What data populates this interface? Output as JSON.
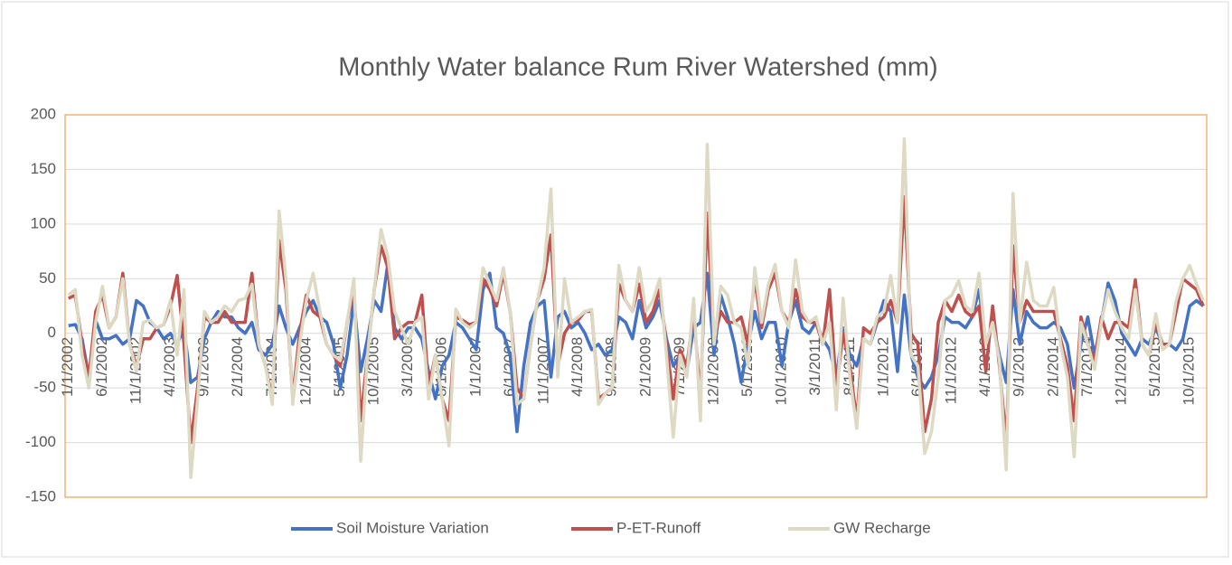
{
  "chart_data": {
    "type": "line",
    "title": "Monthly Water balance Rum River Watershed (mm)",
    "categories": [
      "1/1/2002",
      null,
      null,
      null,
      null,
      "6/1/2002",
      null,
      null,
      null,
      null,
      "11/1/2002",
      null,
      null,
      null,
      null,
      "4/1/2003",
      null,
      null,
      null,
      null,
      "9/1/2003",
      null,
      null,
      null,
      null,
      "2/1/2004",
      null,
      null,
      null,
      null,
      "7/1/2004",
      null,
      null,
      null,
      null,
      "12/1/2004",
      null,
      null,
      null,
      null,
      "5/1/2005",
      null,
      null,
      null,
      null,
      "10/1/2005",
      null,
      null,
      null,
      null,
      "3/1/2006",
      null,
      null,
      null,
      null,
      "8/1/2006",
      null,
      null,
      null,
      null,
      "1/1/2007",
      null,
      null,
      null,
      null,
      "6/1/2007",
      null,
      null,
      null,
      null,
      "11/1/2007",
      null,
      null,
      null,
      null,
      "4/1/2008",
      null,
      null,
      null,
      null,
      "9/1/2008",
      null,
      null,
      null,
      null,
      "2/1/2009",
      null,
      null,
      null,
      null,
      "7/1/2009",
      null,
      null,
      null,
      null,
      "12/1/2009",
      null,
      null,
      null,
      null,
      "5/1/2010",
      null,
      null,
      null,
      null,
      "10/1/2010",
      null,
      null,
      null,
      null,
      "3/1/2011",
      null,
      null,
      null,
      null,
      "8/1/2011",
      null,
      null,
      null,
      null,
      "1/1/2012",
      null,
      null,
      null,
      null,
      "6/1/2012",
      null,
      null,
      null,
      null,
      "11/1/2012",
      null,
      null,
      null,
      null,
      "4/1/2013",
      null,
      null,
      null,
      null,
      "9/1/2013",
      null,
      null,
      null,
      null,
      "2/1/2014",
      null,
      null,
      null,
      null,
      "7/1/2014",
      null,
      null,
      null,
      null,
      "12/1/2014",
      null,
      null,
      null,
      null,
      "5/1/2015",
      null,
      null,
      null,
      null,
      "10/1/2015",
      null,
      null
    ],
    "series": [
      {
        "name": "Soil Moisture Variation",
        "color": "#4472c4",
        "values": [
          7,
          8,
          -5,
          -40,
          12,
          -5,
          -5,
          -2,
          -10,
          -5,
          30,
          25,
          10,
          5,
          -5,
          0,
          -10,
          5,
          -45,
          -40,
          -5,
          10,
          20,
          15,
          15,
          5,
          0,
          10,
          -15,
          -20,
          -10,
          25,
          5,
          -10,
          5,
          20,
          30,
          15,
          10,
          -10,
          -50,
          -20,
          30,
          -35,
          -5,
          30,
          20,
          64,
          5,
          -5,
          5,
          5,
          -5,
          -35,
          -60,
          -30,
          -20,
          10,
          5,
          -5,
          -15,
          40,
          55,
          5,
          0,
          -20,
          -90,
          -30,
          10,
          25,
          30,
          -40,
          15,
          20,
          5,
          10,
          0,
          -15,
          -10,
          -20,
          -15,
          15,
          10,
          -5,
          30,
          5,
          15,
          30,
          -5,
          -30,
          -20,
          -35,
          5,
          10,
          55,
          -20,
          35,
          15,
          -10,
          -45,
          -10,
          20,
          -5,
          10,
          10,
          -30,
          10,
          30,
          5,
          0,
          10,
          -5,
          -15,
          -40,
          5,
          -20,
          -30,
          -5,
          -10,
          10,
          30,
          20,
          -35,
          35,
          -20,
          -40,
          -50,
          -40,
          -20,
          15,
          10,
          10,
          5,
          15,
          40,
          -10,
          10,
          -20,
          -45,
          40,
          -10,
          20,
          10,
          5,
          5,
          10,
          5,
          -10,
          -50,
          -10,
          15,
          -20,
          10,
          46,
          30,
          0,
          -10,
          -20,
          -5,
          -10,
          5,
          -10,
          -10,
          -15,
          -5,
          25,
          30,
          25
        ]
      },
      {
        "name": "P-ET-Runoff",
        "color": "#c0504d",
        "values": [
          32,
          35,
          -10,
          -40,
          20,
          35,
          5,
          15,
          55,
          -10,
          -30,
          -5,
          -5,
          5,
          8,
          25,
          53,
          -10,
          -100,
          -50,
          15,
          10,
          10,
          20,
          10,
          10,
          10,
          55,
          -10,
          -30,
          -60,
          85,
          40,
          -60,
          0,
          35,
          20,
          15,
          -10,
          -20,
          -30,
          10,
          40,
          -80,
          -20,
          40,
          80,
          60,
          -5,
          5,
          10,
          10,
          35,
          -50,
          -20,
          -60,
          -80,
          15,
          12,
          8,
          10,
          50,
          40,
          25,
          55,
          20,
          -50,
          -60,
          -10,
          30,
          50,
          90,
          -30,
          0,
          10,
          12,
          20,
          20,
          -60,
          -55,
          -50,
          45,
          30,
          20,
          45,
          10,
          20,
          40,
          -10,
          -60,
          -15,
          -30,
          20,
          -60,
          110,
          -5,
          20,
          10,
          10,
          15,
          -10,
          50,
          5,
          40,
          55,
          20,
          10,
          40,
          15,
          10,
          10,
          -10,
          40,
          -50,
          0,
          -30,
          -80,
          5,
          0,
          10,
          15,
          30,
          10,
          125,
          0,
          -10,
          -90,
          -60,
          10,
          30,
          20,
          35,
          20,
          15,
          25,
          -35,
          25,
          -30,
          -100,
          80,
          10,
          30,
          20,
          20,
          20,
          20,
          -5,
          -30,
          -80,
          15,
          -10,
          -25,
          15,
          -5,
          10,
          10,
          5,
          49,
          -10,
          -20,
          10,
          -10,
          -10,
          20,
          50,
          45,
          40,
          25
        ]
      },
      {
        "name": "GW Recharge",
        "color": "#ddd9c3",
        "values": [
          35,
          40,
          -20,
          -50,
          10,
          43,
          5,
          15,
          50,
          -10,
          -35,
          10,
          12,
          5,
          8,
          30,
          -20,
          40,
          -132,
          -60,
          20,
          10,
          15,
          25,
          20,
          30,
          32,
          45,
          -10,
          -30,
          -65,
          112,
          50,
          -65,
          -10,
          30,
          55,
          20,
          -10,
          -20,
          -25,
          10,
          50,
          -117,
          -20,
          40,
          95,
          70,
          20,
          5,
          -10,
          10,
          15,
          -60,
          -20,
          -60,
          -103,
          22,
          10,
          5,
          10,
          60,
          45,
          30,
          60,
          20,
          -65,
          -60,
          -10,
          30,
          60,
          132,
          -40,
          50,
          10,
          15,
          20,
          22,
          -65,
          -55,
          -50,
          62,
          30,
          20,
          60,
          20,
          30,
          50,
          -20,
          -95,
          -20,
          -40,
          32,
          -80,
          173,
          -10,
          43,
          35,
          10,
          5,
          -30,
          60,
          10,
          45,
          63,
          20,
          5,
          67,
          20,
          10,
          15,
          -10,
          10,
          -70,
          32,
          -40,
          -87,
          -5,
          -10,
          15,
          20,
          53,
          10,
          178,
          -20,
          -30,
          -110,
          -90,
          -40,
          30,
          35,
          48,
          25,
          20,
          55,
          -10,
          10,
          -25,
          -125,
          128,
          10,
          65,
          30,
          25,
          25,
          42,
          -10,
          -40,
          -113,
          10,
          -10,
          -33,
          10,
          40,
          20,
          5,
          -5,
          40,
          -10,
          -20,
          18,
          -15,
          -10,
          30,
          50,
          62,
          45,
          30
        ]
      }
    ],
    "ylim": [
      -150,
      200
    ],
    "yticks": [
      -150,
      -100,
      -50,
      0,
      50,
      100,
      150,
      200
    ],
    "grid": true,
    "legend": "bottom"
  }
}
